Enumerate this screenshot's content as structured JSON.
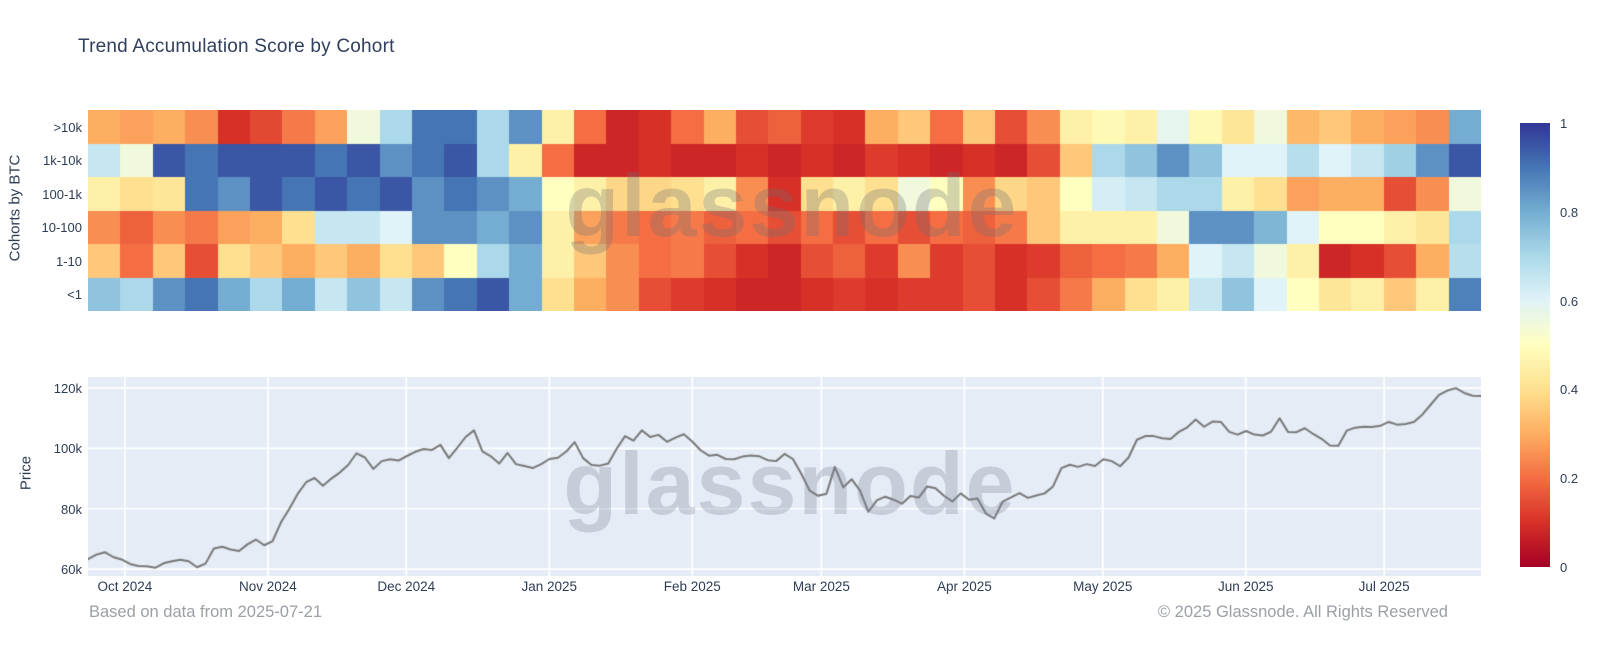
{
  "watermark": "glassnode",
  "footer": {
    "left": "Based on data from 2025-07-21",
    "right": "© 2025 Glassnode. All Rights Reserved"
  },
  "colorbar": {
    "colorscale_name": "RdYlBu",
    "stops_low_to_high": [
      "#a50026",
      "#d73027",
      "#f46d43",
      "#fdae61",
      "#fee090",
      "#ffffbf",
      "#e0f3f8",
      "#abd9e9",
      "#74add1",
      "#4575b4",
      "#313695"
    ],
    "ticks": [
      {
        "label": "1",
        "t": 1.0
      },
      {
        "label": "0.8",
        "t": 0.8
      },
      {
        "label": "0.6",
        "t": 0.6
      },
      {
        "label": "0.4",
        "t": 0.4
      },
      {
        "label": "0.2",
        "t": 0.2
      },
      {
        "label": "0",
        "t": 0.0
      }
    ]
  },
  "colors": {
    "accent_text": "#2e3c54",
    "muted_text": "#9aa0a6",
    "price_line": "#787878",
    "price_bg": "#e5ecf6",
    "grid": "#ffffff"
  },
  "chart_data": [
    {
      "type": "heatmap",
      "title": "Trend Accumulation Score by Cohort",
      "ylabel": "Cohorts by BTC",
      "x_start": "2024-09-23",
      "x_end": "2025-07-21",
      "zmin": 0,
      "zmax": 1,
      "legend_position": "right-colorbar",
      "series": [
        {
          "name": ">10k",
          "values": [
            0.3,
            0.28,
            0.3,
            0.25,
            0.1,
            0.14,
            0.22,
            0.28,
            0.55,
            0.7,
            0.9,
            0.9,
            0.7,
            0.85,
            0.45,
            0.2,
            0.08,
            0.1,
            0.2,
            0.3,
            0.15,
            0.18,
            0.12,
            0.1,
            0.3,
            0.35,
            0.2,
            0.35,
            0.15,
            0.25,
            0.45,
            0.48,
            0.45,
            0.58,
            0.48,
            0.42,
            0.55,
            0.32,
            0.35,
            0.3,
            0.28,
            0.25,
            0.8
          ]
        },
        {
          "name": "1k-10k",
          "values": [
            0.65,
            0.55,
            0.95,
            0.9,
            0.95,
            0.95,
            0.95,
            0.9,
            0.95,
            0.85,
            0.9,
            0.95,
            0.7,
            0.45,
            0.2,
            0.08,
            0.08,
            0.1,
            0.08,
            0.08,
            0.1,
            0.08,
            0.1,
            0.08,
            0.12,
            0.1,
            0.08,
            0.1,
            0.08,
            0.15,
            0.35,
            0.7,
            0.75,
            0.85,
            0.75,
            0.6,
            0.6,
            0.68,
            0.6,
            0.65,
            0.72,
            0.85,
            0.95
          ]
        },
        {
          "name": "100-1k",
          "values": [
            0.45,
            0.4,
            0.42,
            0.9,
            0.85,
            0.95,
            0.9,
            0.95,
            0.9,
            0.95,
            0.85,
            0.9,
            0.85,
            0.8,
            0.5,
            0.45,
            0.38,
            0.38,
            0.4,
            0.45,
            0.25,
            0.1,
            0.4,
            0.45,
            0.4,
            0.55,
            0.5,
            0.25,
            0.38,
            0.35,
            0.5,
            0.62,
            0.65,
            0.7,
            0.7,
            0.45,
            0.4,
            0.28,
            0.3,
            0.3,
            0.15,
            0.25,
            0.55
          ]
        },
        {
          "name": "10-100",
          "values": [
            0.25,
            0.18,
            0.25,
            0.22,
            0.28,
            0.3,
            0.4,
            0.65,
            0.65,
            0.6,
            0.85,
            0.85,
            0.8,
            0.85,
            0.45,
            0.28,
            0.22,
            0.2,
            0.22,
            0.18,
            0.2,
            0.15,
            0.2,
            0.15,
            0.2,
            0.15,
            0.2,
            0.18,
            0.22,
            0.35,
            0.45,
            0.45,
            0.45,
            0.55,
            0.85,
            0.85,
            0.78,
            0.6,
            0.5,
            0.5,
            0.45,
            0.42,
            0.7
          ]
        },
        {
          "name": "1-10",
          "values": [
            0.35,
            0.2,
            0.35,
            0.15,
            0.4,
            0.35,
            0.3,
            0.35,
            0.3,
            0.4,
            0.35,
            0.5,
            0.7,
            0.8,
            0.45,
            0.35,
            0.25,
            0.2,
            0.22,
            0.15,
            0.1,
            0.08,
            0.15,
            0.18,
            0.12,
            0.25,
            0.12,
            0.15,
            0.1,
            0.12,
            0.18,
            0.2,
            0.22,
            0.3,
            0.6,
            0.65,
            0.55,
            0.45,
            0.08,
            0.1,
            0.15,
            0.3,
            0.68
          ]
        },
        {
          "name": "<1",
          "values": [
            0.75,
            0.7,
            0.85,
            0.9,
            0.8,
            0.7,
            0.8,
            0.65,
            0.75,
            0.65,
            0.85,
            0.9,
            0.95,
            0.8,
            0.4,
            0.3,
            0.25,
            0.15,
            0.12,
            0.1,
            0.08,
            0.08,
            0.1,
            0.12,
            0.1,
            0.12,
            0.12,
            0.15,
            0.1,
            0.15,
            0.22,
            0.3,
            0.4,
            0.45,
            0.65,
            0.75,
            0.6,
            0.5,
            0.42,
            0.45,
            0.35,
            0.45,
            0.88
          ]
        }
      ]
    },
    {
      "type": "line",
      "ylabel": "Price",
      "ylim_k": [
        57.7,
        123.7
      ],
      "total_days": 302,
      "grid": true,
      "yticks": [
        {
          "label": "120k",
          "value": 120
        },
        {
          "label": "100k",
          "value": 100
        },
        {
          "label": "80k",
          "value": 80
        },
        {
          "label": "60k",
          "value": 60
        }
      ],
      "xticks": [
        {
          "label": "Oct 2024",
          "day": 8
        },
        {
          "label": "Nov 2024",
          "day": 39
        },
        {
          "label": "Dec 2024",
          "day": 69
        },
        {
          "label": "Jan 2025",
          "day": 100
        },
        {
          "label": "Feb 2025",
          "day": 131
        },
        {
          "label": "Mar 2025",
          "day": 159
        },
        {
          "label": "Apr 2025",
          "day": 190
        },
        {
          "label": "May 2025",
          "day": 220
        },
        {
          "label": "Jun 2025",
          "day": 251
        },
        {
          "label": "Jul 2025",
          "day": 281
        }
      ],
      "values_k": [
        63.3,
        64.8,
        65.6,
        64.0,
        63.2,
        61.7,
        61.0,
        60.9,
        60.4,
        61.9,
        62.6,
        63.1,
        62.6,
        60.6,
        61.8,
        66.8,
        67.4,
        66.5,
        66.0,
        68.2,
        69.8,
        67.9,
        69.3,
        75.5,
        80.0,
        85.0,
        88.8,
        90.2,
        87.6,
        90.0,
        92.0,
        94.5,
        98.4,
        97.0,
        93.2,
        95.8,
        96.4,
        96.0,
        97.5,
        98.9,
        99.8,
        99.5,
        101.2,
        96.8,
        100.2,
        103.8,
        106.0,
        99.0,
        97.4,
        95.0,
        98.5,
        94.8,
        94.2,
        93.5,
        94.8,
        96.5,
        96.9,
        99.0,
        102.1,
        96.8,
        94.5,
        94.3,
        95.0,
        99.9,
        104.1,
        102.6,
        106.0,
        103.8,
        104.5,
        102.2,
        103.6,
        104.7,
        102.3,
        99.4,
        97.6,
        97.9,
        96.5,
        96.4,
        97.3,
        97.7,
        97.4,
        96.1,
        95.8,
        98.2,
        96.5,
        91.6,
        86.0,
        84.3,
        85.0,
        93.9,
        87.1,
        89.8,
        86.0,
        79.0,
        82.8,
        84.0,
        83.0,
        81.7,
        84.2,
        83.7,
        87.4,
        86.8,
        84.3,
        82.4,
        85.1,
        83.0,
        83.4,
        78.4,
        76.8,
        82.4,
        83.8,
        85.2,
        83.6,
        84.4,
        85.1,
        87.4,
        93.5,
        94.6,
        93.9,
        94.8,
        94.2,
        96.4,
        95.8,
        94.1,
        97.0,
        102.9,
        104.1,
        104.1,
        103.4,
        103.1,
        105.5,
        107.0,
        109.6,
        107.2,
        108.9,
        108.8,
        105.5,
        104.6,
        105.8,
        104.6,
        104.3,
        105.6,
        110.0,
        105.5,
        105.4,
        106.7,
        104.8,
        103.2,
        101.0,
        100.9,
        105.9,
        106.9,
        107.2,
        107.1,
        107.5,
        108.8,
        107.9,
        108.1,
        108.8,
        111.2,
        114.5,
        117.8,
        119.2,
        120.0,
        118.4,
        117.5,
        117.4
      ]
    }
  ]
}
